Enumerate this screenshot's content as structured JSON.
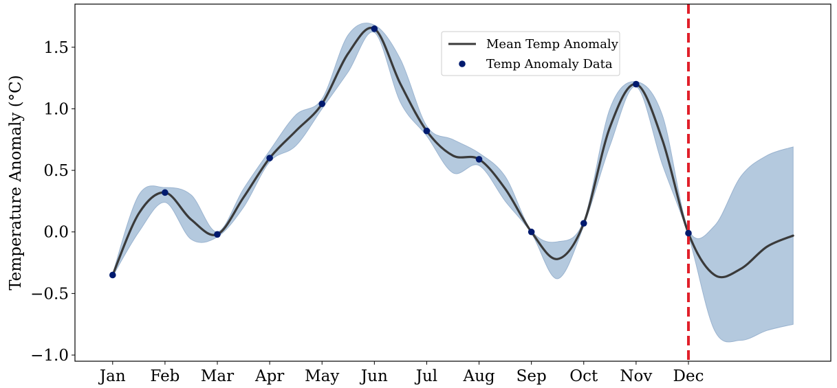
{
  "chart_data": {
    "type": "line",
    "title": "",
    "xlabel": "",
    "ylabel": "Temperature Anomaly (°C)",
    "categories": [
      "Jan",
      "Feb",
      "Mar",
      "Apr",
      "May",
      "Jun",
      "Jul",
      "Aug",
      "Sep",
      "Oct",
      "Nov",
      "Dec"
    ],
    "ylim": [
      -1.05,
      1.85
    ],
    "xlim": [
      -0.72,
      13.72
    ],
    "yticks": [
      -1.0,
      -0.5,
      0.0,
      0.5,
      1.0,
      1.5
    ],
    "ytick_labels": [
      "−1.0",
      "−0.5",
      "0.0",
      "0.5",
      "1.0",
      "1.5"
    ],
    "grid": false,
    "legend_position": "upper-center",
    "legend": {
      "mean_label": "Mean Temp Anomaly",
      "data_label": "Temp Anomaly Data"
    },
    "data_points": {
      "name": "Temp Anomaly Data",
      "x": [
        0,
        1,
        2,
        3,
        4,
        5,
        6,
        7,
        8,
        9,
        10,
        11
      ],
      "y": [
        -0.35,
        0.32,
        -0.02,
        0.6,
        1.04,
        1.65,
        0.82,
        0.59,
        0.0,
        0.07,
        1.2,
        -0.01
      ]
    },
    "mean_curve": {
      "name": "Mean Temp Anomaly",
      "x": [
        0,
        0.5,
        1,
        1.5,
        2,
        2.5,
        3,
        3.5,
        4,
        4.5,
        5,
        5.5,
        6,
        6.5,
        7,
        7.5,
        8,
        8.5,
        9,
        9.5,
        10,
        10.5,
        11,
        11.5,
        12,
        12.5,
        13
      ],
      "y": [
        -0.35,
        0.15,
        0.32,
        0.1,
        -0.02,
        0.28,
        0.6,
        0.82,
        1.04,
        1.45,
        1.65,
        1.2,
        0.82,
        0.62,
        0.59,
        0.35,
        0.0,
        -0.22,
        0.07,
        0.85,
        1.2,
        0.75,
        -0.01,
        -0.35,
        -0.3,
        -0.12,
        -0.03
      ]
    },
    "confidence_band": {
      "upper": [
        -0.34,
        0.3,
        0.36,
        0.3,
        0.0,
        0.35,
        0.66,
        0.95,
        1.08,
        1.6,
        1.68,
        1.4,
        0.86,
        0.75,
        0.64,
        0.45,
        0.01,
        -0.08,
        0.09,
        1.0,
        1.22,
        0.95,
        0.02,
        0.05,
        0.45,
        0.62,
        0.69
      ],
      "lower": [
        -0.36,
        0.0,
        0.24,
        -0.06,
        -0.04,
        0.2,
        0.57,
        0.7,
        1.0,
        1.3,
        1.62,
        1.05,
        0.78,
        0.48,
        0.54,
        0.25,
        -0.01,
        -0.38,
        0.05,
        0.7,
        1.18,
        0.55,
        -0.03,
        -0.8,
        -0.88,
        -0.8,
        -0.75
      ]
    },
    "vertical_marker": {
      "x": 11,
      "style": "dashed"
    },
    "colors": {
      "mean_line": "#3a3a3a",
      "points": "#001a6e",
      "band_fill": "#b4c9de",
      "band_edge": "#9ab3cf",
      "marker_line": "#e0202a"
    }
  }
}
